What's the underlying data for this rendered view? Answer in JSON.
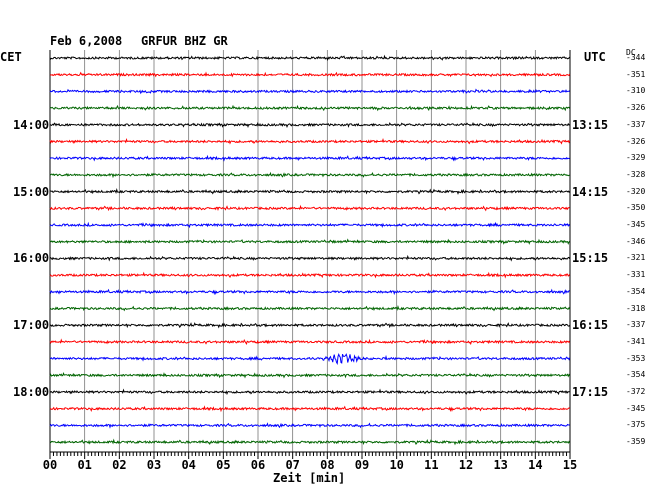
{
  "header": {
    "date": "Feb 6,2008",
    "station": "GRFUR BHZ GR",
    "left_tz": "CET",
    "right_tz": "UTC",
    "dc_label": "DC"
  },
  "chart_data": {
    "type": "line",
    "title": "Feb 6,2008   GRFUR BHZ GR",
    "xlabel": "Zeit [min]",
    "xlim": [
      0,
      15
    ],
    "x_ticks": [
      "00",
      "01",
      "02",
      "03",
      "04",
      "05",
      "06",
      "07",
      "08",
      "09",
      "10",
      "11",
      "12",
      "13",
      "14",
      "15"
    ],
    "grid": true,
    "minutes_per_trace": 15,
    "trace_colors": [
      "#000000",
      "#ff0000",
      "#0000ff",
      "#006400"
    ],
    "left_time_labels": [
      {
        "trace": 4,
        "text": "14:00"
      },
      {
        "trace": 8,
        "text": "15:00"
      },
      {
        "trace": 12,
        "text": "16:00"
      },
      {
        "trace": 16,
        "text": "17:00"
      },
      {
        "trace": 20,
        "text": "18:00"
      }
    ],
    "right_time_labels": [
      {
        "trace": 4,
        "text": "13:15"
      },
      {
        "trace": 8,
        "text": "14:15"
      },
      {
        "trace": 12,
        "text": "15:15"
      },
      {
        "trace": 16,
        "text": "16:15"
      },
      {
        "trace": 20,
        "text": "17:15"
      }
    ],
    "dc_offsets": [
      "-344",
      "-351",
      "-310",
      "-326",
      "-337",
      "-326",
      "-329",
      "-328",
      "-320",
      "-350",
      "-345",
      "-346",
      "-321",
      "-331",
      "-354",
      "-318",
      "-337",
      "-341",
      "-353",
      "-354",
      "-372",
      "-345",
      "-375",
      "-359"
    ],
    "events": [
      {
        "trace": 18,
        "minute": 8.4,
        "description": "small seismic event"
      }
    ]
  }
}
